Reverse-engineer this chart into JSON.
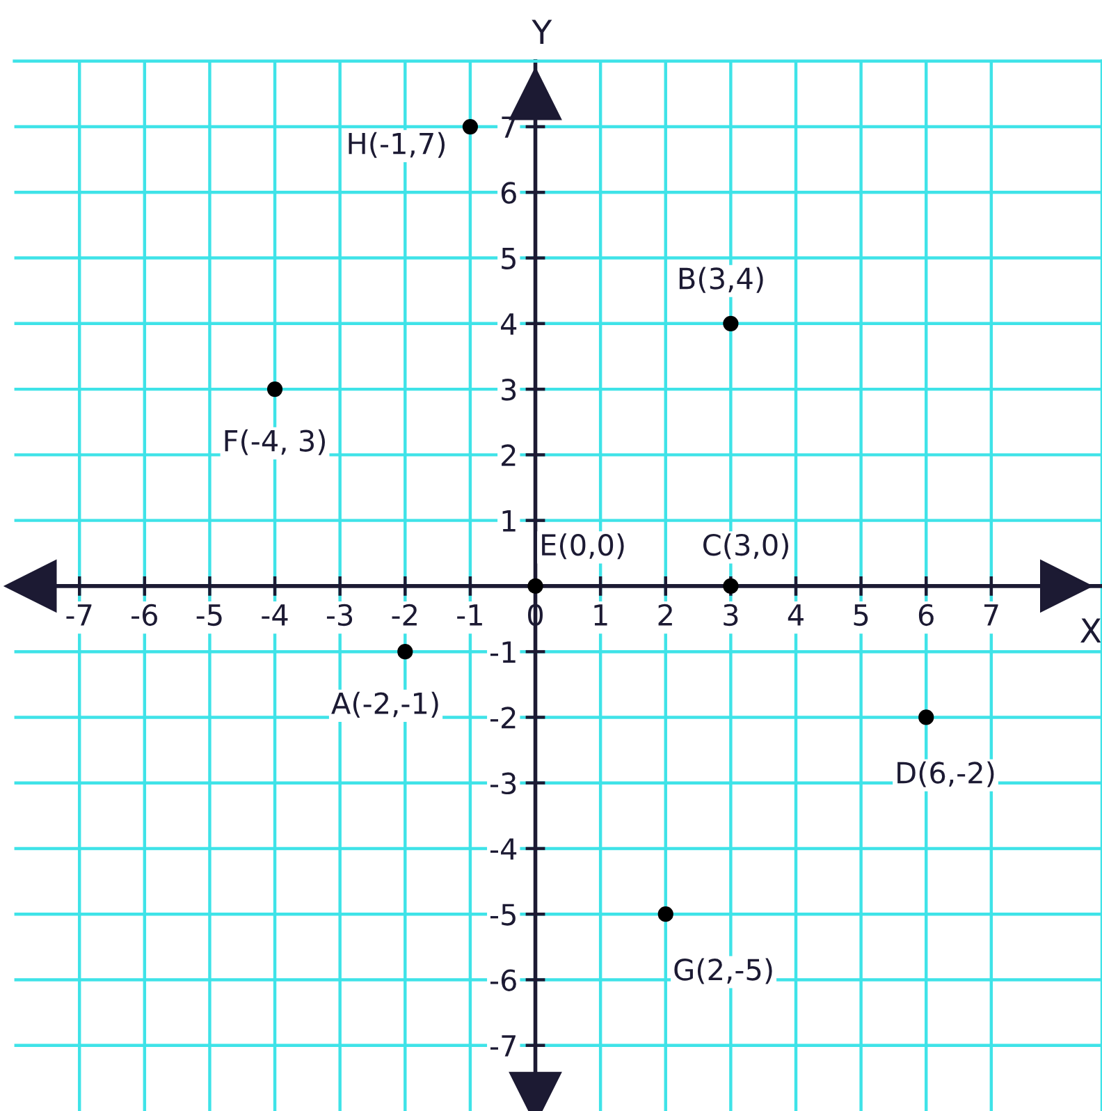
{
  "chart_data": {
    "type": "scatter",
    "xlabel": "X",
    "ylabel": "Y",
    "x": [
      -1,
      3,
      -4,
      0,
      3,
      -2,
      6,
      2
    ],
    "values": [
      7,
      4,
      3,
      0,
      0,
      -1,
      -2,
      -5
    ],
    "color": "#000000",
    "marker": "circle",
    "grid": true,
    "xlim": [
      -8,
      8.7
    ],
    "ylim": [
      -8,
      8
    ],
    "xticks": [
      -7,
      -6,
      -5,
      -4,
      -3,
      -2,
      -1,
      0,
      1,
      2,
      3,
      4,
      5,
      6,
      7
    ],
    "yticks": [
      -7,
      -6,
      -5,
      -4,
      -3,
      -2,
      -1,
      {
        "value": 0,
        "label": null
      },
      1,
      2,
      3,
      4,
      5,
      6,
      7
    ],
    "annotations": [
      {
        "text": "H(-1,7)",
        "x": -1,
        "y": 7
      },
      {
        "text": "B(3,4)",
        "x": 3,
        "y": 4
      },
      {
        "text": "F(-4, 3)",
        "x": -4,
        "y": 3
      },
      {
        "text": "E(0,0)",
        "x": 0,
        "y": 0
      },
      {
        "text": "C(3,0)",
        "x": 3,
        "y": 0
      },
      {
        "text": "A(-2,-1)",
        "x": -2,
        "y": -1
      },
      {
        "text": "D(6,-2)",
        "x": 6,
        "y": -2
      },
      {
        "text": "G(2,-5)",
        "x": 2,
        "y": -5
      }
    ]
  }
}
